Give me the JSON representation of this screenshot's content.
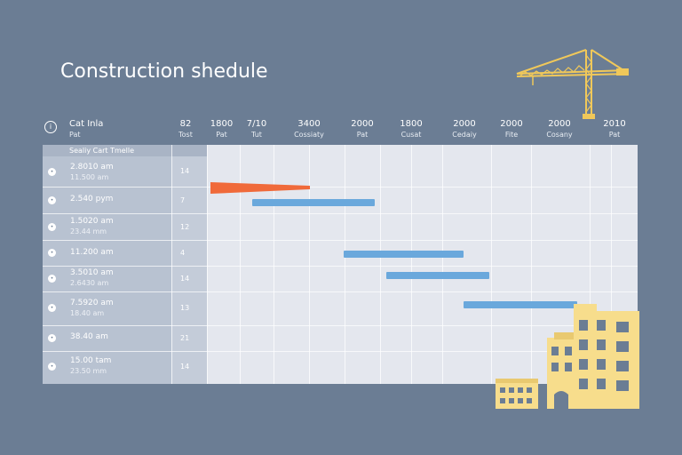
{
  "title": "Construction shedule",
  "header": {
    "left": {
      "line1": "Cat Inla",
      "line2": "Pat"
    },
    "col2": {
      "line1": "82",
      "line2": "Tost"
    },
    "timeline": [
      {
        "line1": "1800",
        "line2": "Pat"
      },
      {
        "line1": "7/10",
        "line2": "Tut"
      },
      {
        "line1": "3400",
        "line2": "Cossiaty"
      },
      {
        "line1": "2000",
        "line2": "Pat"
      },
      {
        "line1": "1800",
        "line2": "Cusat"
      },
      {
        "line1": "2000",
        "line2": "Cedaiy"
      },
      {
        "line1": "2000",
        "line2": "Fite"
      },
      {
        "line1": "2000",
        "line2": "Cosany"
      },
      {
        "line1": "2010",
        "line2": "Pat"
      }
    ]
  },
  "subheader": "Sealiy Cart Tmelle",
  "rows": [
    {
      "num": "•",
      "line1": "2.8010 am",
      "line2": "11.500 am",
      "value": "14"
    },
    {
      "num": "•",
      "line1": "2.540 pym",
      "line2": "",
      "value": "7"
    },
    {
      "num": "•",
      "line1": "1.5020 am",
      "line2": "23.44 mm",
      "value": "12"
    },
    {
      "num": "•",
      "line1": "11.200 am",
      "line2": "",
      "value": "4"
    },
    {
      "num": "•",
      "line1": "3.5010 am",
      "line2": "2.6430 am",
      "value": "14"
    },
    {
      "num": "•",
      "line1": "7.5920 am",
      "line2": "18.40 am",
      "value": "13"
    },
    {
      "num": "•",
      "line1": "38.40 am",
      "line2": "",
      "value": "21"
    },
    {
      "num": "•",
      "line1": "15.00 tam",
      "line2": "23.50 mm",
      "value": "14"
    }
  ],
  "colors": {
    "background": "#6b7d94",
    "bar_blue": "#6aa8dc",
    "bar_red": "#f06a3a",
    "accent_yellow": "#f7dd8c"
  },
  "icons": [
    "info-icon",
    "crane-illustration",
    "building-illustration"
  ]
}
